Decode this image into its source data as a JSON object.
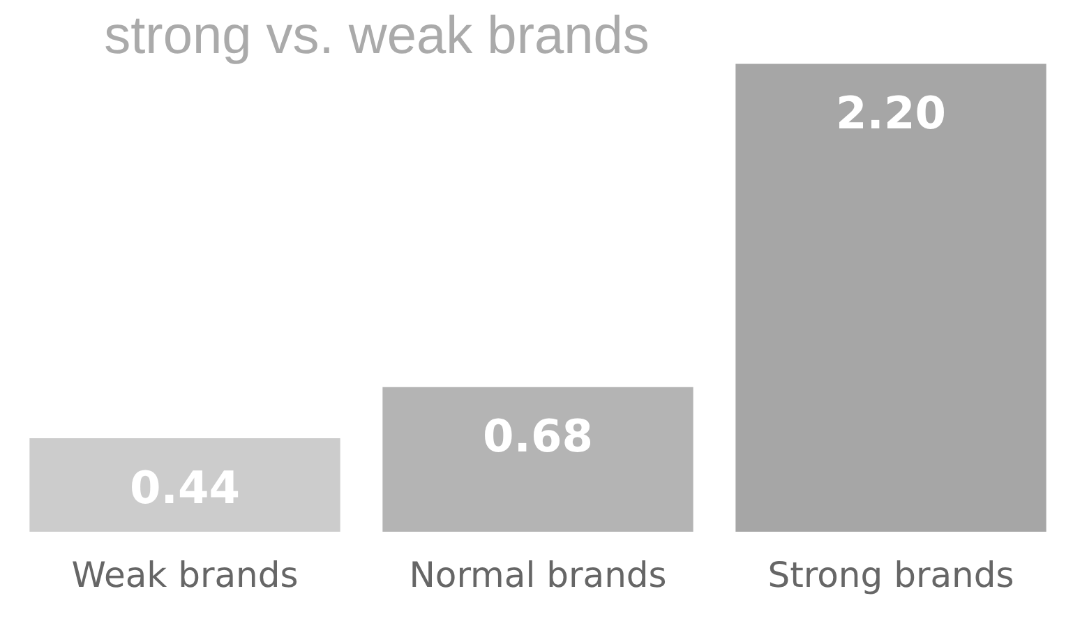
{
  "chart_data": {
    "type": "bar",
    "title": "strong vs. weak brands",
    "categories": [
      "Weak brands",
      "Normal brands",
      "Strong brands"
    ],
    "values": [
      0.44,
      0.68,
      2.2
    ],
    "value_labels": [
      "0.44",
      "0.68",
      "2.20"
    ],
    "colors": [
      "#cccccc",
      "#b4b4b4",
      "#a6a6a6"
    ],
    "tick_labels": "x",
    "grid": false,
    "legend": false
  }
}
